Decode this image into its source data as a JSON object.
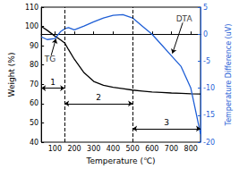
{
  "chart_data": {
    "type": "line",
    "x_label": "Temperature (℃)",
    "y_label": "Weight (%)",
    "y2_label": "Temperature Difference (uV)",
    "xlim": [
      30,
      850
    ],
    "xticks": [
      100,
      200,
      300,
      400,
      500,
      600,
      700,
      800
    ],
    "ylim": [
      40,
      110
    ],
    "yticks": [
      40,
      50,
      60,
      70,
      80,
      90,
      100,
      110
    ],
    "y2lim": [
      -20,
      5
    ],
    "y2ticks": [
      -20,
      -15,
      -10,
      -5,
      0,
      5
    ],
    "grid": false,
    "legend": "none",
    "x": [
      30,
      60,
      100,
      130,
      150,
      170,
      200,
      250,
      300,
      350,
      400,
      450,
      500,
      550,
      600,
      650,
      700,
      750,
      800,
      850
    ],
    "series": [
      {
        "name": "TG",
        "color": "#000000",
        "line_style": "solid",
        "values": [
          100,
          98,
          95,
          93,
          91.5,
          88,
          83,
          76,
          71.5,
          69.5,
          68.5,
          67.8,
          67,
          66.5,
          66,
          65.8,
          65.5,
          65.3,
          65.1,
          65
        ]
      },
      {
        "name": "DTA",
        "color": "#1f5fd6",
        "axis": "y2",
        "line_style": "solid",
        "values": [
          -0.5,
          -1,
          -0.8,
          0.5,
          1,
          1.2,
          0.8,
          1.5,
          2.3,
          3,
          3.5,
          3.6,
          3,
          1.5,
          0,
          -2,
          -4,
          -6,
          -10,
          -18.5
        ]
      }
    ],
    "annotations": [
      {
        "text": "TG",
        "x": 75,
        "y": 83,
        "to": [
          105,
          93.5
        ]
      },
      {
        "text": "DTA",
        "x": 765,
        "y": 104,
        "to": [
          705,
          86
        ]
      }
    ],
    "regions": [
      {
        "label": "1",
        "start": 30,
        "end": 150,
        "y": 68
      },
      {
        "label": "2",
        "start": 150,
        "end": 500,
        "y": 60
      },
      {
        "label": "3",
        "start": 500,
        "end": 850,
        "y": 47
      }
    ]
  }
}
